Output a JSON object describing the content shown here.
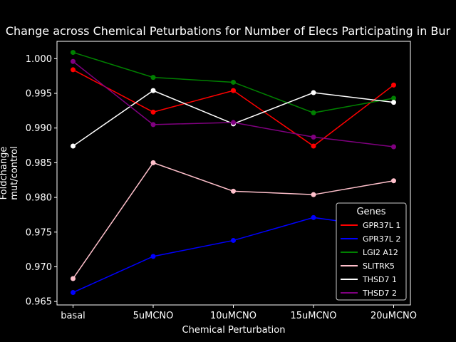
{
  "chart_data": {
    "type": "line",
    "title": "Change across Chemical Peturbations for Number of Elecs Participating in Bur",
    "xlabel": "Chemical Perturbation",
    "ylabel_lines": [
      "Foldchange",
      "mut/control"
    ],
    "categories": [
      "basal",
      "5uMCNO",
      "10uMCNO",
      "15uMCNO",
      "20uMCNO"
    ],
    "ylim": [
      0.9645,
      1.0025
    ],
    "yticks": [
      0.965,
      0.97,
      0.975,
      0.98,
      0.985,
      0.99,
      0.995,
      1.0
    ],
    "ytick_labels": [
      "0.965",
      "0.970",
      "0.975",
      "0.980",
      "0.985",
      "0.990",
      "0.995",
      "1.000"
    ],
    "grid": false,
    "legend": {
      "title": "Genes",
      "placement": "lower-right"
    },
    "series": [
      {
        "name": "GPR37L 1",
        "color": "#ff0000",
        "values": [
          0.9984,
          0.9923,
          0.9954,
          0.9874,
          0.9962
        ]
      },
      {
        "name": "GPR37L 2",
        "color": "#0000ff",
        "values": [
          0.9663,
          0.9715,
          0.9738,
          0.9771,
          0.9755
        ]
      },
      {
        "name": "LGI2 A12",
        "color": "#008000",
        "values": [
          1.0009,
          0.9973,
          0.9966,
          0.9922,
          0.9943
        ]
      },
      {
        "name": "SLITRK5",
        "color": "#ffc0cb",
        "values": [
          0.9683,
          0.985,
          0.9809,
          0.9804,
          0.9824
        ]
      },
      {
        "name": "THSD7 1",
        "color": "#ffffff",
        "values": [
          0.9874,
          0.9954,
          0.9906,
          0.9951,
          0.9937
        ]
      },
      {
        "name": "THSD7 2",
        "color": "#800080",
        "values": [
          0.9996,
          0.9905,
          0.9908,
          0.9887,
          0.9873
        ]
      }
    ]
  }
}
